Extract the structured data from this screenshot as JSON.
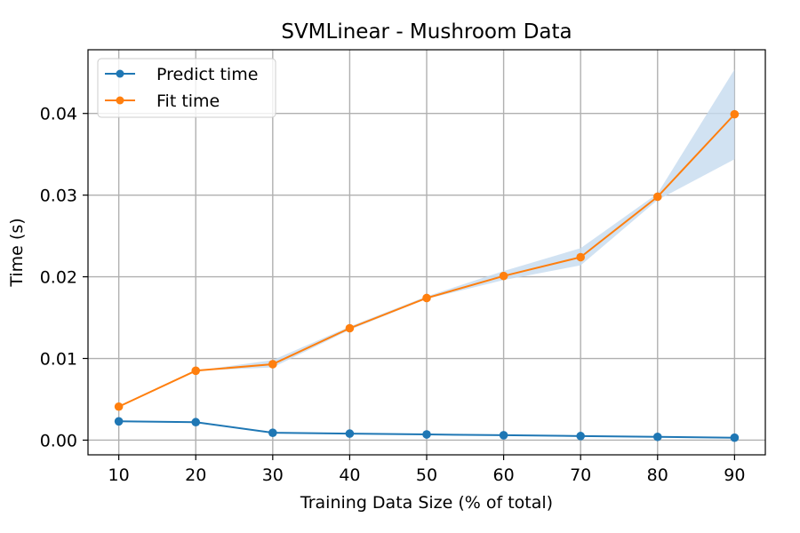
{
  "chart_data": {
    "type": "line",
    "title": "SVMLinear - Mushroom Data",
    "xlabel": "Training Data Size (% of total)",
    "ylabel": "Time (s)",
    "x": [
      10,
      20,
      30,
      40,
      50,
      60,
      70,
      80,
      90
    ],
    "xlim": [
      6,
      94
    ],
    "ylim": [
      -0.0018,
      0.0478
    ],
    "xticks": [
      "10",
      "20",
      "30",
      "40",
      "50",
      "60",
      "70",
      "80",
      "90"
    ],
    "yticks": [
      "0.00",
      "0.01",
      "0.02",
      "0.03",
      "0.04"
    ],
    "ytick_values": [
      0,
      0.01,
      0.02,
      0.03,
      0.04
    ],
    "grid": true,
    "legend_position": "top-left",
    "series": [
      {
        "name": "Predict time",
        "color": "#1f77b4",
        "values": [
          0.0023,
          0.0022,
          0.0009,
          0.0008,
          0.0007,
          0.0006,
          0.0005,
          0.0004,
          0.0003
        ]
      },
      {
        "name": "Fit time",
        "color": "#ff7f0e",
        "values": [
          0.0041,
          0.0085,
          0.0093,
          0.0137,
          0.0174,
          0.0201,
          0.0224,
          0.0298,
          0.0399
        ],
        "band_color": "#c6dbef",
        "band_lower": [
          0.0041,
          0.0085,
          0.0089,
          0.0135,
          0.0173,
          0.0196,
          0.0214,
          0.0294,
          0.0344
        ],
        "band_upper": [
          0.0041,
          0.0085,
          0.0098,
          0.0139,
          0.0176,
          0.0207,
          0.0235,
          0.0302,
          0.0454
        ]
      }
    ]
  }
}
